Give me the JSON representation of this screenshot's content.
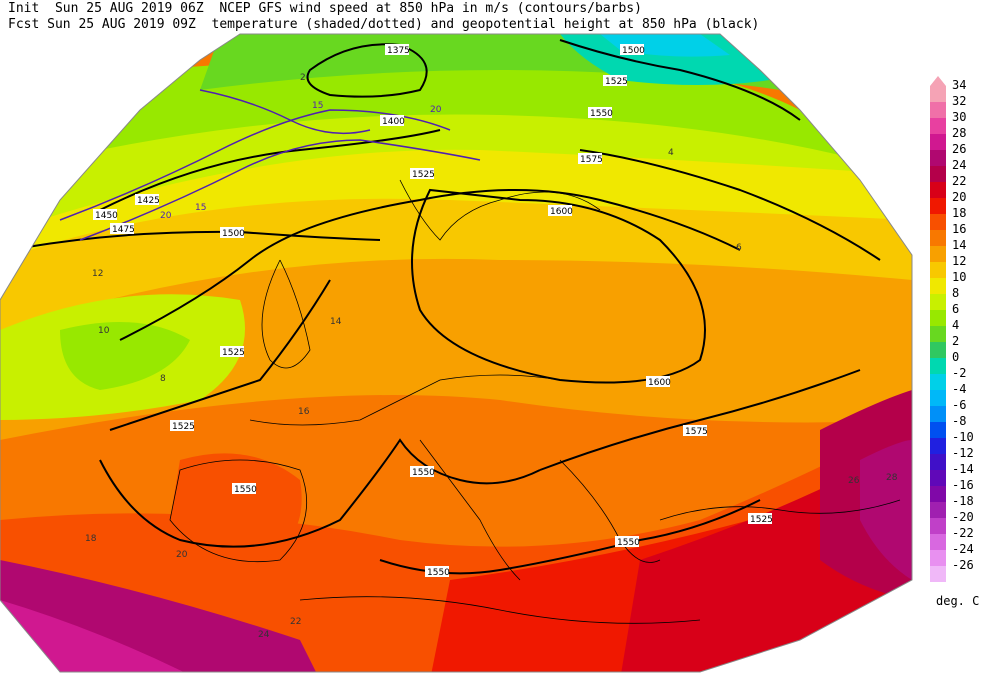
{
  "header": {
    "init_line": "Init  Sun 25 AUG 2019 06Z  NCEP GFS wind speed at 850 hPa in m/s (contours/barbs)",
    "fcst_line": "Fcst Sun 25 AUG 2019 09Z  temperature (shaded/dotted) and geopotential height at 850 hPa (black)"
  },
  "legend": {
    "units": "deg. C",
    "levels": [
      {
        "label": "34",
        "color": "#f5a3b5"
      },
      {
        "label": "32",
        "color": "#f070a8"
      },
      {
        "label": "30",
        "color": "#e840a0"
      },
      {
        "label": "28",
        "color": "#d01890"
      },
      {
        "label": "26",
        "color": "#b00870"
      },
      {
        "label": "24",
        "color": "#b4004a"
      },
      {
        "label": "22",
        "color": "#d80018"
      },
      {
        "label": "20",
        "color": "#f01800"
      },
      {
        "label": "18",
        "color": "#f85000"
      },
      {
        "label": "16",
        "color": "#f87800"
      },
      {
        "label": "14",
        "color": "#f8a000"
      },
      {
        "label": "12",
        "color": "#f8c800"
      },
      {
        "label": "10",
        "color": "#f0e800"
      },
      {
        "label": "8",
        "color": "#c8f000"
      },
      {
        "label": "6",
        "color": "#98e800"
      },
      {
        "label": "4",
        "color": "#68d820"
      },
      {
        "label": "2",
        "color": "#30c860"
      },
      {
        "label": "0",
        "color": "#00d8b0"
      },
      {
        "label": "-2",
        "color": "#00d0e8"
      },
      {
        "label": "-4",
        "color": "#00b8f8"
      },
      {
        "label": "-6",
        "color": "#0090f8"
      },
      {
        "label": "-8",
        "color": "#0050f0"
      },
      {
        "label": "-10",
        "color": "#2020e0"
      },
      {
        "label": "-12",
        "color": "#4010c8"
      },
      {
        "label": "-14",
        "color": "#6008b8"
      },
      {
        "label": "-16",
        "color": "#8008a8"
      },
      {
        "label": "-18",
        "color": "#a020b0"
      },
      {
        "label": "-20",
        "color": "#c040c8"
      },
      {
        "label": "-22",
        "color": "#d868e0"
      },
      {
        "label": "-24",
        "color": "#e890f0"
      },
      {
        "label": "-26",
        "color": "#f0b8f8"
      }
    ]
  },
  "geopotential_labels": [
    "1375",
    "1500",
    "1525",
    "1550",
    "1575",
    "1600",
    "1400",
    "1425",
    "1450",
    "1475"
  ],
  "temperature_labels": [
    "2",
    "4",
    "6",
    "8",
    "10",
    "12",
    "14",
    "16",
    "18",
    "20",
    "22",
    "24",
    "26",
    "28"
  ],
  "wind_labels": [
    "15",
    "20"
  ]
}
